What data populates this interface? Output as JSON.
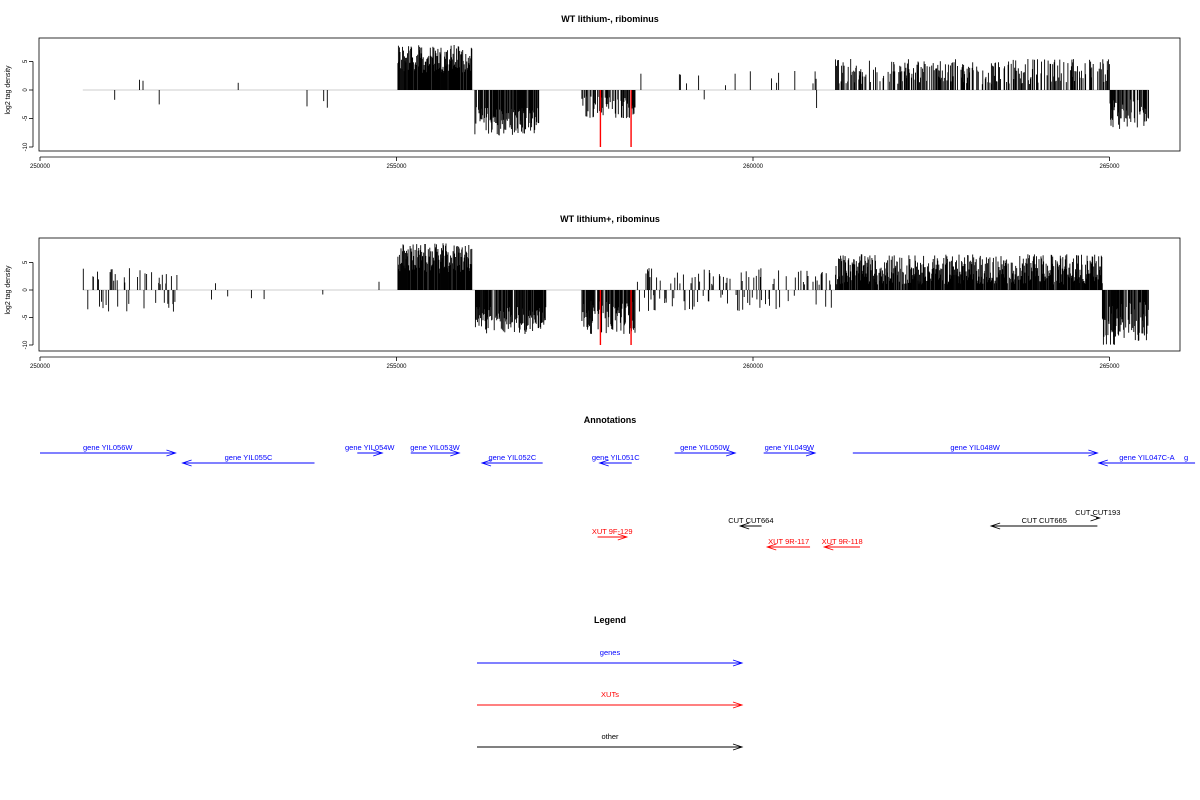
{
  "colors": {
    "gene": "#0000ff",
    "xut": "#ff0000",
    "other": "#000000",
    "bar": "#000000",
    "baseline": "#bdbdbd",
    "highlight": "#ff0000"
  },
  "chart_data": [
    {
      "type": "bar",
      "title": "WT lithium-, ribominus",
      "ylabel": "log2 tag density",
      "xlim": [
        250000,
        266200
      ],
      "ylim": [
        -10,
        9
      ],
      "xticks": [
        250000,
        255000,
        260000,
        265000
      ],
      "xtick_labels": [
        "250000",
        "255000",
        "260000",
        "265000"
      ],
      "yticks": [
        -10,
        -5,
        0,
        5
      ],
      "ytick_labels": [
        "-10",
        "-5",
        "0",
        "5"
      ],
      "highlight_x": [
        257860,
        258290
      ],
      "highlight_value": -10,
      "segments": [
        {
          "from": 250600,
          "to": 254800,
          "density": 0.009,
          "amp": [
            1,
            3.5
          ],
          "sign": "mixed"
        },
        {
          "from": 255020,
          "to": 256060,
          "density": 0.9,
          "amp": [
            3,
            8
          ],
          "sign": "pos"
        },
        {
          "from": 256100,
          "to": 257000,
          "density": 0.75,
          "amp": [
            -8,
            -3
          ],
          "sign": "neg"
        },
        {
          "from": 257600,
          "to": 258350,
          "density": 0.5,
          "amp": [
            -5,
            -1
          ],
          "sign": "neg"
        },
        {
          "from": 258350,
          "to": 261100,
          "density": 0.04,
          "amp": [
            0.8,
            3.5
          ],
          "sign": "mostpos"
        },
        {
          "from": 261150,
          "to": 265000,
          "density": 0.45,
          "amp": [
            1,
            5.5
          ],
          "sign": "pos"
        },
        {
          "from": 265000,
          "to": 265550,
          "density": 0.75,
          "amp": [
            -7,
            -1.5
          ],
          "sign": "neg"
        }
      ]
    },
    {
      "type": "bar",
      "title": "WT lithium+, ribominus",
      "ylabel": "log2 tag density",
      "xlim": [
        250000,
        266200
      ],
      "ylim": [
        -10,
        9
      ],
      "xticks": [
        250000,
        255000,
        260000,
        265000
      ],
      "xtick_labels": [
        "250000",
        "255000",
        "260000",
        "265000"
      ],
      "yticks": [
        -10,
        -5,
        0,
        5
      ],
      "ytick_labels": [
        "-10",
        "-5",
        "0",
        "5"
      ],
      "highlight_x": [
        257860,
        258290
      ],
      "highlight_value": -10,
      "segments": [
        {
          "from": 250600,
          "to": 252000,
          "density": 0.22,
          "amp": [
            1,
            4
          ],
          "sign": "mixed"
        },
        {
          "from": 252000,
          "to": 254800,
          "density": 0.025,
          "amp": [
            0.5,
            2
          ],
          "sign": "mixed"
        },
        {
          "from": 255020,
          "to": 256060,
          "density": 0.95,
          "amp": [
            3,
            8.5
          ],
          "sign": "pos"
        },
        {
          "from": 256100,
          "to": 257100,
          "density": 0.8,
          "amp": [
            -8,
            -3
          ],
          "sign": "neg"
        },
        {
          "from": 257600,
          "to": 258350,
          "density": 0.75,
          "amp": [
            -8,
            -2
          ],
          "sign": "neg"
        },
        {
          "from": 258350,
          "to": 261100,
          "density": 0.25,
          "amp": [
            0.8,
            4
          ],
          "sign": "mixed"
        },
        {
          "from": 261150,
          "to": 264900,
          "density": 0.9,
          "amp": [
            1,
            6.5
          ],
          "sign": "pos"
        },
        {
          "from": 264900,
          "to": 265550,
          "density": 0.85,
          "amp": [
            -10,
            -2
          ],
          "sign": "neg"
        }
      ]
    }
  ],
  "annotations": {
    "title": "Annotations",
    "features": [
      {
        "label": "gene YIL056W",
        "type": "gene",
        "from": 250000,
        "to": 251900,
        "strand": "+",
        "row": 0
      },
      {
        "label": "gene YIL055C",
        "type": "gene",
        "from": 252000,
        "to": 253850,
        "strand": "-",
        "row": 1
      },
      {
        "label": "gene YIL054W",
        "type": "gene",
        "from": 254450,
        "to": 254800,
        "strand": "+",
        "row": 0
      },
      {
        "label": "gene YIL053W",
        "type": "gene",
        "from": 255200,
        "to": 255880,
        "strand": "+",
        "row": 0
      },
      {
        "label": "gene YIL052C",
        "type": "gene",
        "from": 256200,
        "to": 257050,
        "strand": "-",
        "row": 1
      },
      {
        "label": "gene YIL051C",
        "type": "gene",
        "from": 257850,
        "to": 258300,
        "strand": "-",
        "row": 1
      },
      {
        "label": "gene YIL050W",
        "type": "gene",
        "from": 258900,
        "to": 259750,
        "strand": "+",
        "row": 0
      },
      {
        "label": "gene YIL049W",
        "type": "gene",
        "from": 260150,
        "to": 260870,
        "strand": "+",
        "row": 0
      },
      {
        "label": "gene YIL048W",
        "type": "gene",
        "from": 261400,
        "to": 264830,
        "strand": "+",
        "row": 0
      },
      {
        "label": "gene YIL047C-A",
        "type": "gene",
        "from": 264850,
        "to": 266200,
        "strand": "-",
        "row": 1
      },
      {
        "label": "g",
        "type": "gene",
        "from": 266150,
        "to": 266200,
        "strand": "+",
        "row": 1
      },
      {
        "label": "CUT CUT193",
        "type": "other",
        "from": 264810,
        "to": 264860,
        "strand": "+",
        "row": 2
      },
      {
        "label": "CUT CUT664",
        "type": "other",
        "from": 259820,
        "to": 260120,
        "strand": "-",
        "row": 3
      },
      {
        "label": "CUT CUT665",
        "type": "other",
        "from": 263340,
        "to": 264830,
        "strand": "-",
        "row": 3
      },
      {
        "label": "XUT 9F-129",
        "type": "xut",
        "from": 257820,
        "to": 258230,
        "strand": "+",
        "row": 4
      },
      {
        "label": "XUT 9R-117",
        "type": "xut",
        "from": 260200,
        "to": 260800,
        "strand": "-",
        "row": 5
      },
      {
        "label": "XUT 9R-118",
        "type": "xut",
        "from": 261000,
        "to": 261500,
        "strand": "-",
        "row": 5
      }
    ]
  },
  "legend": {
    "title": "Legend",
    "items": [
      {
        "label": "genes",
        "type": "gene"
      },
      {
        "label": "XUTs",
        "type": "xut"
      },
      {
        "label": "other",
        "type": "other"
      }
    ]
  }
}
